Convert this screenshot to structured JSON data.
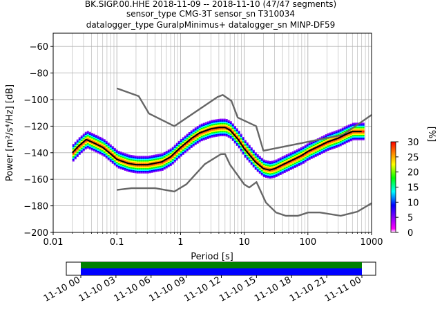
{
  "chart_data": {
    "type": "line",
    "title_lines": [
      "BK.SIGP.00.HHE   2018-11-09 -- 2018-11-10  (47/47 segments)",
      "sensor_type CMG-3T sensor_sn T310034",
      "datalogger_type GuralpMinimus+ datalogger_sn MINP-DF59"
    ],
    "xlabel": "Period [s]",
    "ylabel": "Power [m²/s⁴/Hz] [dB]",
    "x_scale": "log",
    "xlim": [
      0.01,
      1000
    ],
    "ylim": [
      -200,
      -50
    ],
    "grid": true,
    "x_ticks": [
      {
        "v": 0.01,
        "label": "0.01"
      },
      {
        "v": 0.1,
        "label": "0.1"
      },
      {
        "v": 1,
        "label": "1"
      },
      {
        "v": 10,
        "label": "10"
      },
      {
        "v": 100,
        "label": "100"
      },
      {
        "v": 1000,
        "label": "1000"
      }
    ],
    "y_ticks": [
      {
        "v": -60,
        "label": "−60"
      },
      {
        "v": -80,
        "label": "−80"
      },
      {
        "v": -100,
        "label": "−100"
      },
      {
        "v": -120,
        "label": "−120"
      },
      {
        "v": -140,
        "label": "−140"
      },
      {
        "v": -160,
        "label": "−160"
      },
      {
        "v": -180,
        "label": "−180"
      },
      {
        "v": -200,
        "label": "−200"
      }
    ],
    "series": [
      {
        "role": "high-noise-model",
        "color": "#666666",
        "x": [
          0.1,
          0.22,
          0.32,
          0.8,
          3.8,
          4.6,
          6.3,
          7.9,
          15.4,
          20,
          354.8,
          1000
        ],
        "y": [
          -91.5,
          -97.4,
          -110.5,
          -120,
          -98,
          -96.5,
          -101,
          -113.5,
          -120,
          -138.5,
          -126.5,
          -111.5
        ]
      },
      {
        "role": "low-noise-model",
        "color": "#666666",
        "x": [
          0.1,
          0.17,
          0.4,
          0.8,
          1.24,
          2.4,
          4.3,
          5,
          6,
          10,
          12,
          15.6,
          21.9,
          31.6,
          45,
          70,
          101,
          154,
          328,
          600,
          1000
        ],
        "y": [
          -168,
          -166.7,
          -166.7,
          -169.2,
          -163.7,
          -148.6,
          -141.1,
          -141,
          -149,
          -163.8,
          -166.2,
          -162.1,
          -177.5,
          -185,
          -187.5,
          -187.5,
          -185,
          -185,
          -187.5,
          -184.4,
          -178
        ]
      },
      {
        "role": "mean-psd",
        "color": "#000000",
        "x": [
          0.02,
          0.025,
          0.033,
          0.045,
          0.06,
          0.08,
          0.1,
          0.15,
          0.2,
          0.3,
          0.5,
          0.7,
          1,
          1.5,
          2,
          3,
          4,
          5,
          6,
          8,
          10,
          15,
          20,
          25,
          30,
          40,
          60,
          80,
          100,
          150,
          200,
          300,
          400,
          500,
          700
        ],
        "y": [
          -140,
          -135,
          -130,
          -133,
          -136,
          -141,
          -145,
          -148,
          -149,
          -149,
          -147,
          -143,
          -136,
          -129,
          -125,
          -122,
          -121,
          -121,
          -123,
          -130,
          -137,
          -147,
          -152,
          -153,
          -152,
          -149,
          -145,
          -142,
          -139,
          -135,
          -132,
          -129,
          -126,
          -124,
          -124
        ]
      }
    ],
    "psd_cloud_spread_db": 6,
    "colorbar": {
      "label": "[%]",
      "range": [
        0,
        30
      ],
      "ticks": [
        "0",
        "5",
        "10",
        "15",
        "20",
        "25",
        "30"
      ],
      "colors": [
        "#ffffff",
        "#ff00ff",
        "#8000ff",
        "#0000ff",
        "#00ffff",
        "#00ff00",
        "#ffff00",
        "#ff8000",
        "#ff0000"
      ]
    },
    "coverage": {
      "time_ticks": [
        "11-10 00",
        "11-10 03",
        "11-10 06",
        "11-10 09",
        "11-10 12",
        "11-10 15",
        "11-10 18",
        "11-10 21",
        "11-11 00"
      ],
      "top_color": "#008000",
      "bottom_color": "#0000ff"
    }
  }
}
